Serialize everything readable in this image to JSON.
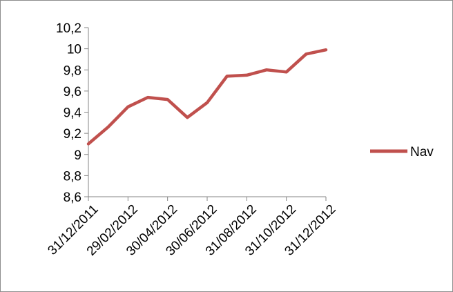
{
  "chart_data": {
    "type": "line",
    "title": "",
    "xlabel": "",
    "ylabel": "",
    "ylim": [
      8.6,
      10.2
    ],
    "y_ticks": [
      "8,6",
      "8,8",
      "9",
      "9,2",
      "9,4",
      "9,6",
      "9,8",
      "10",
      "10,2"
    ],
    "y_tick_values": [
      8.6,
      8.8,
      9.0,
      9.2,
      9.4,
      9.6,
      9.8,
      10.0,
      10.2
    ],
    "x": [
      "31/12/2011",
      "31/01/2012",
      "29/02/2012",
      "31/03/2012",
      "30/04/2012",
      "31/05/2012",
      "30/06/2012",
      "31/07/2012",
      "31/08/2012",
      "30/09/2012",
      "31/10/2012",
      "30/11/2012",
      "31/12/2012"
    ],
    "x_tick_labels": [
      "31/12/2011",
      "29/02/2012",
      "30/04/2012",
      "30/06/2012",
      "31/08/2012",
      "31/10/2012",
      "31/12/2012"
    ],
    "series": [
      {
        "name": "Nav",
        "color": "#c0504d",
        "values": [
          9.1,
          9.26,
          9.45,
          9.54,
          9.52,
          9.35,
          9.49,
          9.74,
          9.75,
          9.8,
          9.78,
          9.95,
          9.99
        ]
      }
    ],
    "grid": false,
    "legend_position": "right"
  }
}
